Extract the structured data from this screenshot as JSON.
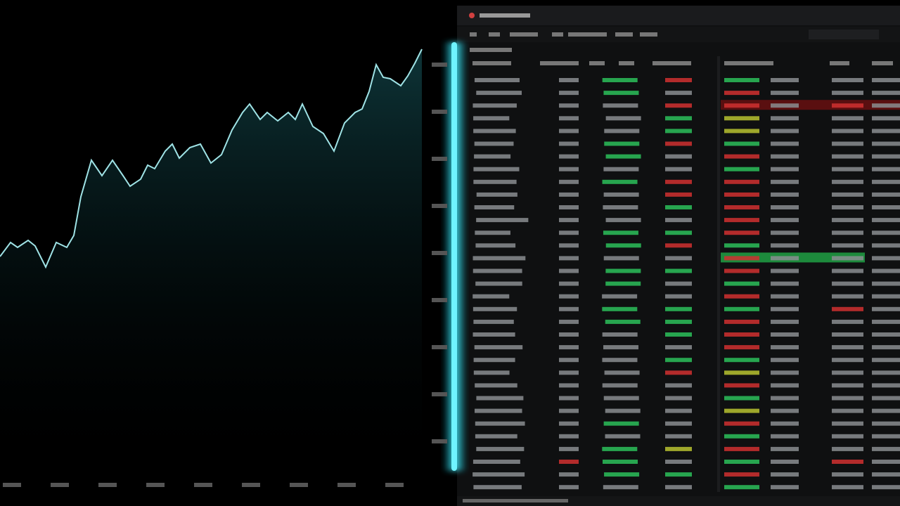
{
  "price_chart": {
    "type": "area",
    "x": [
      0,
      15,
      25,
      40,
      50,
      65,
      80,
      95,
      105,
      115,
      130,
      145,
      160,
      175,
      185,
      200,
      210,
      220,
      235,
      245,
      255,
      270,
      285,
      300,
      315,
      330,
      345,
      355,
      370,
      380,
      395,
      410,
      420,
      430,
      445,
      460,
      475,
      490,
      505,
      515,
      525,
      535,
      545,
      555,
      570,
      580,
      590,
      600
    ],
    "values": [
      355,
      375,
      368,
      378,
      370,
      340,
      375,
      368,
      385,
      440,
      492,
      470,
      492,
      470,
      455,
      465,
      485,
      480,
      505,
      515,
      495,
      510,
      515,
      488,
      500,
      535,
      560,
      572,
      550,
      560,
      548,
      560,
      550,
      572,
      540,
      530,
      505,
      545,
      560,
      565,
      590,
      628,
      610,
      608,
      598,
      612,
      630,
      650
    ],
    "color": "#9fe3e6"
  }
}
